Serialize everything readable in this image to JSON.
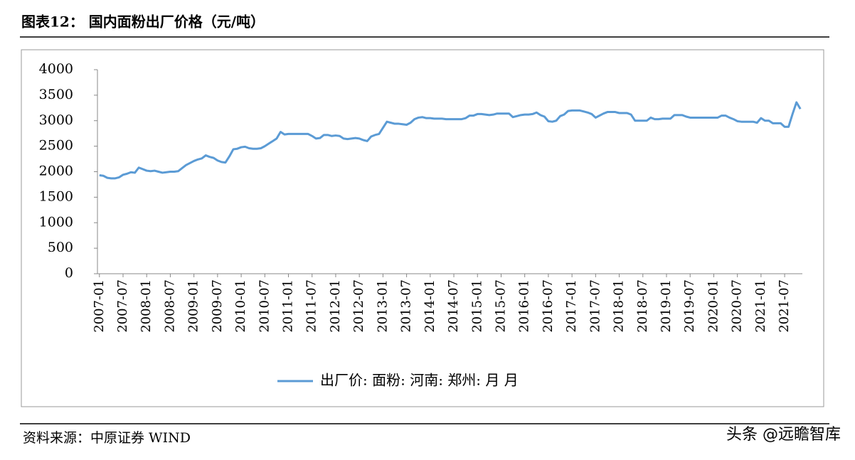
{
  "header": {
    "title": "图表12：  国内面粉出厂价格（元/吨）"
  },
  "chart_data": {
    "type": "line",
    "categories": [
      "2007-01",
      null,
      null,
      null,
      null,
      null,
      "2007-07",
      null,
      null,
      null,
      null,
      null,
      "2008-01",
      null,
      null,
      null,
      null,
      null,
      "2008-07",
      null,
      null,
      null,
      null,
      null,
      "2009-01",
      null,
      null,
      null,
      null,
      null,
      "2009-07",
      null,
      null,
      null,
      null,
      null,
      "2010-01",
      null,
      null,
      null,
      null,
      null,
      "2010-07",
      null,
      null,
      null,
      null,
      null,
      "2011-01",
      null,
      null,
      null,
      null,
      null,
      "2011-07",
      null,
      null,
      null,
      null,
      null,
      "2012-01",
      null,
      null,
      null,
      null,
      null,
      "2012-07",
      null,
      null,
      null,
      null,
      null,
      "2013-01",
      null,
      null,
      null,
      null,
      null,
      "2013-07",
      null,
      null,
      null,
      null,
      null,
      "2014-01",
      null,
      null,
      null,
      null,
      null,
      "2014-07",
      null,
      null,
      null,
      null,
      null,
      "2015-01",
      null,
      null,
      null,
      null,
      null,
      "2015-07",
      null,
      null,
      null,
      null,
      null,
      "2016-01",
      null,
      null,
      null,
      null,
      null,
      "2016-07",
      null,
      null,
      null,
      null,
      null,
      "2017-01",
      null,
      null,
      null,
      null,
      null,
      "2017-07",
      null,
      null,
      null,
      null,
      null,
      "2018-01",
      null,
      null,
      null,
      null,
      null,
      "2018-07",
      null,
      null,
      null,
      null,
      null,
      "2019-01",
      null,
      null,
      null,
      null,
      null,
      "2019-07",
      null,
      null,
      null,
      null,
      null,
      "2020-01",
      null,
      null,
      null,
      null,
      null,
      "2020-07",
      null,
      null,
      null,
      null,
      null,
      "2021-01",
      null,
      null,
      null,
      null,
      null,
      "2021-07",
      null,
      null,
      null,
      null
    ],
    "series": [
      {
        "name": "出厂价: 面粉: 河南: 郑州: 月  月",
        "color": "#5b9bd5",
        "values": [
          1930,
          1920,
          1880,
          1870,
          1870,
          1890,
          1940,
          1960,
          1990,
          1980,
          2080,
          2050,
          2020,
          2010,
          2020,
          2000,
          1980,
          1990,
          2000,
          2000,
          2010,
          2070,
          2130,
          2170,
          2210,
          2240,
          2260,
          2320,
          2290,
          2270,
          2220,
          2190,
          2180,
          2300,
          2440,
          2450,
          2480,
          2490,
          2460,
          2450,
          2450,
          2460,
          2500,
          2550,
          2600,
          2650,
          2780,
          2730,
          2740,
          2740,
          2740,
          2740,
          2740,
          2740,
          2700,
          2650,
          2660,
          2720,
          2720,
          2700,
          2710,
          2700,
          2650,
          2640,
          2650,
          2660,
          2650,
          2620,
          2600,
          2690,
          2720,
          2740,
          2860,
          2980,
          2960,
          2940,
          2940,
          2930,
          2920,
          2960,
          3030,
          3060,
          3070,
          3050,
          3050,
          3040,
          3040,
          3040,
          3030,
          3030,
          3030,
          3030,
          3030,
          3050,
          3100,
          3100,
          3130,
          3130,
          3120,
          3110,
          3120,
          3140,
          3140,
          3140,
          3140,
          3070,
          3090,
          3110,
          3120,
          3120,
          3130,
          3160,
          3110,
          3080,
          2990,
          2980,
          3000,
          3090,
          3120,
          3190,
          3200,
          3200,
          3200,
          3180,
          3160,
          3130,
          3060,
          3100,
          3140,
          3170,
          3170,
          3170,
          3150,
          3150,
          3150,
          3120,
          3000,
          3000,
          3000,
          3000,
          3060,
          3030,
          3030,
          3040,
          3040,
          3040,
          3110,
          3110,
          3110,
          3080,
          3060,
          3060,
          3060,
          3060,
          3060,
          3060,
          3060,
          3060,
          3100,
          3100,
          3060,
          3030,
          2990,
          2980,
          2980,
          2980,
          2980,
          2960,
          3050,
          3000,
          3000,
          2950,
          2950,
          2950,
          2880,
          2880,
          3130,
          3360,
          3230
        ]
      }
    ],
    "ylim": [
      0,
      4000
    ],
    "yticks": [
      0,
      500,
      1000,
      1500,
      2000,
      2500,
      3000,
      3500,
      4000
    ],
    "grid": false,
    "legend": "bottom"
  },
  "footer": {
    "source": "资料来源：中原证券 WIND",
    "watermark": "头条 @远瞻智库"
  }
}
